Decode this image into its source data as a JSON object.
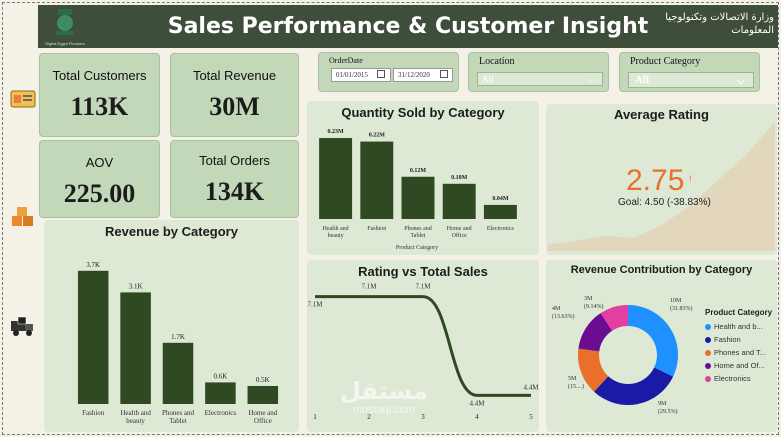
{
  "header": {
    "title": "Sales Performance & Customer Insight",
    "logo_left_caption": "Digital Egypt Pioneers",
    "logo_right_text": "وزارة الاتصالات وتكنولوجيا المعلومات"
  },
  "sidebar": {
    "icons": [
      "id-card-icon",
      "boxes-icon",
      "delivery-truck-icon"
    ]
  },
  "kpis": {
    "total_customers": {
      "label": "Total Customers",
      "value": "113K"
    },
    "total_revenue": {
      "label": "Total Revenue",
      "value": "30M"
    },
    "aov": {
      "label": "AOV",
      "value": "225.00"
    },
    "total_orders": {
      "label": "Total Orders",
      "value": "134K"
    }
  },
  "filters": {
    "order_date": {
      "label": "OrderDate",
      "start": "01/01/2015",
      "end": "31/12/2020"
    },
    "location": {
      "label": "Location",
      "value": "All"
    },
    "product_category": {
      "label": "Product Category",
      "value": "All"
    }
  },
  "revenue_by_category": {
    "title": "Revenue by Category",
    "chart_data": {
      "type": "bar",
      "categories": [
        "Fashion",
        "Health and beauty",
        "Phones and Tablet",
        "Electronics",
        "Home and Office"
      ],
      "values": [
        3.7,
        3.1,
        1.7,
        0.6,
        0.5
      ],
      "data_labels": [
        "3.7K",
        "3.1K",
        "1.7K",
        "0.6K",
        "0.5K"
      ],
      "ylim": [
        0,
        4
      ]
    }
  },
  "quantity_by_category": {
    "title": "Quantity Sold by Category",
    "xlabel": "Product Category",
    "chart_data": {
      "type": "bar",
      "categories": [
        "Health and beauty",
        "Fashion",
        "Phones and Tablet",
        "Home and Office",
        "Electronics"
      ],
      "values": [
        0.23,
        0.22,
        0.12,
        0.1,
        0.04
      ],
      "data_labels": [
        "0.23M",
        "0.22M",
        "0.12M",
        "0.10M",
        "0.04M"
      ],
      "ylim": [
        0,
        0.25
      ]
    }
  },
  "average_rating": {
    "title": "Average Rating",
    "value": "2.75",
    "marker": "!",
    "goal_text": "Goal: 4.50 (-38.83%)",
    "trend": [
      0.05,
      0.08,
      0.12,
      0.1,
      0.2,
      0.35,
      0.55,
      0.75,
      1.0
    ]
  },
  "rating_vs_sales": {
    "title": "Rating vs Total Sales",
    "chart_data": {
      "type": "line",
      "x": [
        1,
        2,
        3,
        4,
        5
      ],
      "values": [
        7.1,
        7.1,
        7.1,
        4.4,
        4.4
      ],
      "data_labels": [
        "7.1M",
        "7.1M",
        "7.1M",
        "4.4M",
        "4.4M"
      ],
      "x_ticks": [
        "1",
        "2",
        "3",
        "4",
        "5"
      ],
      "ylim": [
        4.0,
        7.5
      ]
    }
  },
  "revenue_contribution": {
    "title": "Revenue Contribution by Category",
    "legend_title": "Product Category",
    "chart_data": {
      "type": "pie",
      "categories": [
        "Health and b...",
        "Fashion",
        "Phones and T...",
        "Home and Of...",
        "Electronics"
      ],
      "values": [
        31.83,
        29.5,
        15.0,
        13.63,
        9.14
      ],
      "colors": [
        "#1e90ff",
        "#1a1aa6",
        "#e8702a",
        "#6a0d91",
        "#e23fa0"
      ],
      "slice_labels": [
        "10M (31.83%)",
        "9M (29.5%)",
        "5M (15....)",
        "4M (13.63%)",
        "3M (9.14%)"
      ]
    }
  },
  "watermark": {
    "text": "مستقل",
    "sub": "mostaql.com"
  }
}
